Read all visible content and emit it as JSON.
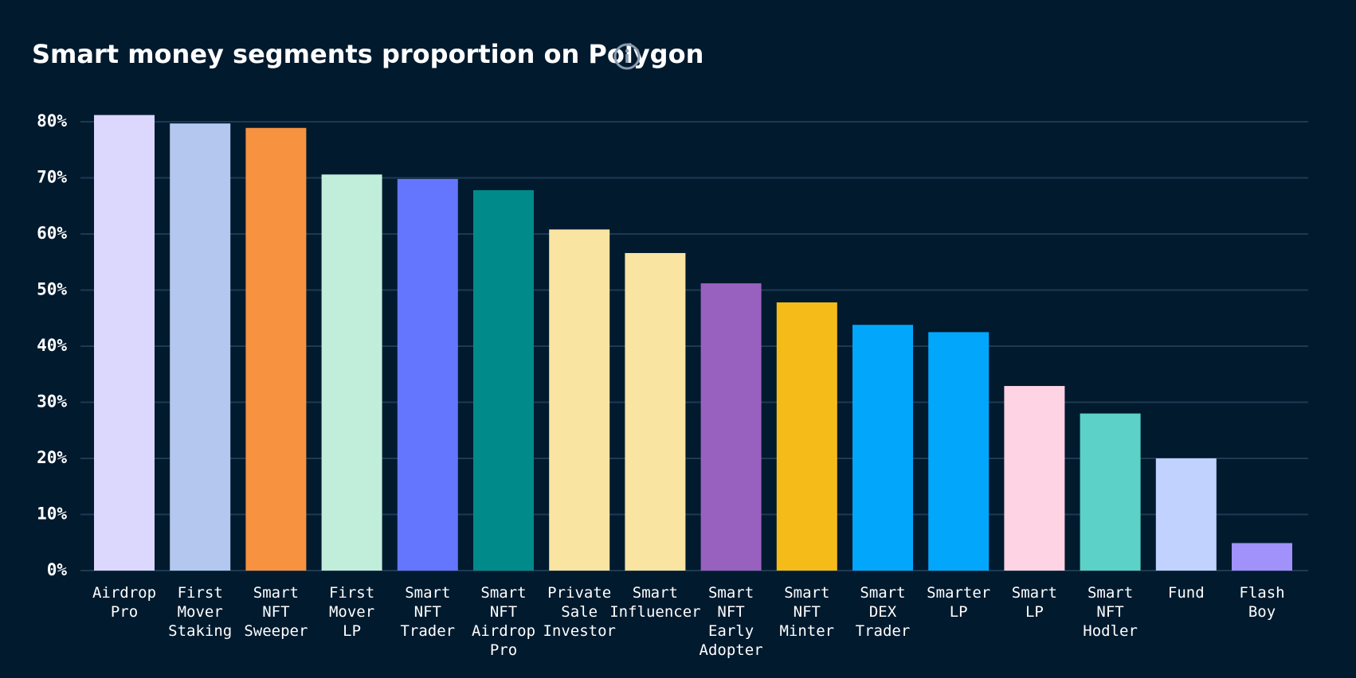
{
  "chart_data": {
    "type": "bar",
    "title": "Smart money segments proportion on Polygon",
    "categories": [
      "Airdrop Pro",
      "First Mover Staking",
      "Smart NFT Sweeper",
      "First Mover LP",
      "Smart NFT Trader",
      "Smart NFT Airdrop Pro",
      "Private Sale Investor",
      "Smart Influencer",
      "Smart NFT Early Adopter",
      "Smart NFT Minter",
      "Smart DEX Trader",
      "Smarter LP",
      "Smart LP",
      "Smart NFT Hodler",
      "Fund",
      "Flash Boy"
    ],
    "values": [
      81.2,
      79.7,
      78.9,
      70.6,
      69.8,
      67.8,
      60.8,
      56.6,
      51.2,
      47.8,
      43.8,
      42.5,
      32.9,
      28.0,
      20.0,
      4.9
    ],
    "colors": [
      "#dcd7fd",
      "#b3c7ef",
      "#f79241",
      "#c0eedb",
      "#6476fd",
      "#008b8a",
      "#f9e4a2",
      "#f9e4a2",
      "#9961bf",
      "#f5bc19",
      "#02a7fb",
      "#02a7fb",
      "#fed4e4",
      "#5bd1c8",
      "#c0d2fd",
      "#a091fb"
    ],
    "ylim": [
      0,
      80
    ],
    "yticks": [
      {
        "value": 0,
        "label": "0%"
      },
      {
        "value": 10,
        "label": "10%"
      },
      {
        "value": 20,
        "label": "20%"
      },
      {
        "value": 30,
        "label": "30%"
      },
      {
        "value": 40,
        "label": "40%"
      },
      {
        "value": 50,
        "label": "50%"
      },
      {
        "value": 60,
        "label": "60%"
      },
      {
        "value": 70,
        "label": "70%"
      },
      {
        "value": 80,
        "label": "80%"
      }
    ],
    "grid": true
  }
}
